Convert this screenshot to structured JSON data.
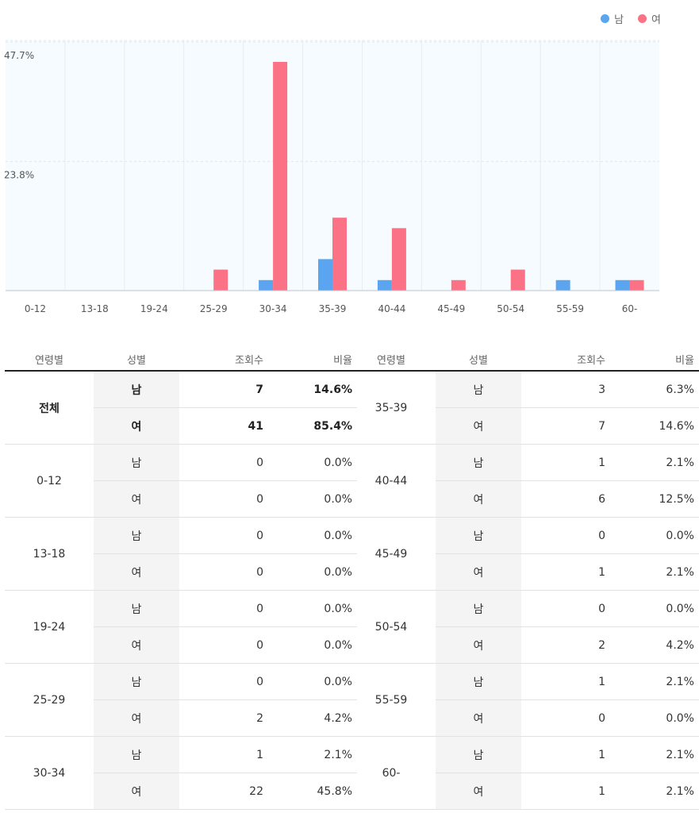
{
  "chart_data": {
    "type": "bar",
    "categories": [
      "0-12",
      "13-18",
      "19-24",
      "25-29",
      "30-34",
      "35-39",
      "40-44",
      "45-49",
      "50-54",
      "55-59",
      "60-"
    ],
    "series": [
      {
        "name": "남",
        "color": "#5ba4f0",
        "values": [
          0.0,
          0.0,
          0.0,
          0.0,
          2.1,
          6.3,
          2.1,
          0.0,
          0.0,
          2.1,
          2.1
        ]
      },
      {
        "name": "여",
        "color": "#fb7185",
        "values": [
          0.0,
          0.0,
          0.0,
          4.2,
          45.8,
          14.6,
          12.5,
          2.1,
          4.2,
          0.0,
          2.1
        ]
      }
    ],
    "y_ticks": [
      "47.7%",
      "23.8%"
    ],
    "y_tick_values": [
      47.7,
      23.8
    ],
    "ylim": [
      0,
      47.7
    ],
    "grid": true,
    "legend_position": "top-right"
  },
  "legend": [
    {
      "label": "남",
      "color": "#5ba4f0"
    },
    {
      "label": "여",
      "color": "#fb7185"
    }
  ],
  "table_headers": [
    "연령별",
    "성별",
    "조회수",
    "비율"
  ],
  "table_left": [
    {
      "age": "전체",
      "total": true,
      "rows": [
        {
          "sex": "남",
          "count": "7",
          "ratio": "14.6%"
        },
        {
          "sex": "여",
          "count": "41",
          "ratio": "85.4%"
        }
      ]
    },
    {
      "age": "0-12",
      "rows": [
        {
          "sex": "남",
          "count": "0",
          "ratio": "0.0%"
        },
        {
          "sex": "여",
          "count": "0",
          "ratio": "0.0%"
        }
      ]
    },
    {
      "age": "13-18",
      "rows": [
        {
          "sex": "남",
          "count": "0",
          "ratio": "0.0%"
        },
        {
          "sex": "여",
          "count": "0",
          "ratio": "0.0%"
        }
      ]
    },
    {
      "age": "19-24",
      "rows": [
        {
          "sex": "남",
          "count": "0",
          "ratio": "0.0%"
        },
        {
          "sex": "여",
          "count": "0",
          "ratio": "0.0%"
        }
      ]
    },
    {
      "age": "25-29",
      "rows": [
        {
          "sex": "남",
          "count": "0",
          "ratio": "0.0%"
        },
        {
          "sex": "여",
          "count": "2",
          "ratio": "4.2%"
        }
      ]
    },
    {
      "age": "30-34",
      "rows": [
        {
          "sex": "남",
          "count": "1",
          "ratio": "2.1%"
        },
        {
          "sex": "여",
          "count": "22",
          "ratio": "45.8%"
        }
      ]
    }
  ],
  "table_right": [
    {
      "age": "35-39",
      "rows": [
        {
          "sex": "남",
          "count": "3",
          "ratio": "6.3%"
        },
        {
          "sex": "여",
          "count": "7",
          "ratio": "14.6%"
        }
      ]
    },
    {
      "age": "40-44",
      "rows": [
        {
          "sex": "남",
          "count": "1",
          "ratio": "2.1%"
        },
        {
          "sex": "여",
          "count": "6",
          "ratio": "12.5%"
        }
      ]
    },
    {
      "age": "45-49",
      "rows": [
        {
          "sex": "남",
          "count": "0",
          "ratio": "0.0%"
        },
        {
          "sex": "여",
          "count": "1",
          "ratio": "2.1%"
        }
      ]
    },
    {
      "age": "50-54",
      "rows": [
        {
          "sex": "남",
          "count": "0",
          "ratio": "0.0%"
        },
        {
          "sex": "여",
          "count": "2",
          "ratio": "4.2%"
        }
      ]
    },
    {
      "age": "55-59",
      "rows": [
        {
          "sex": "남",
          "count": "1",
          "ratio": "2.1%"
        },
        {
          "sex": "여",
          "count": "0",
          "ratio": "0.0%"
        }
      ]
    },
    {
      "age": "60-",
      "rows": [
        {
          "sex": "남",
          "count": "1",
          "ratio": "2.1%"
        },
        {
          "sex": "여",
          "count": "1",
          "ratio": "2.1%"
        }
      ]
    }
  ]
}
